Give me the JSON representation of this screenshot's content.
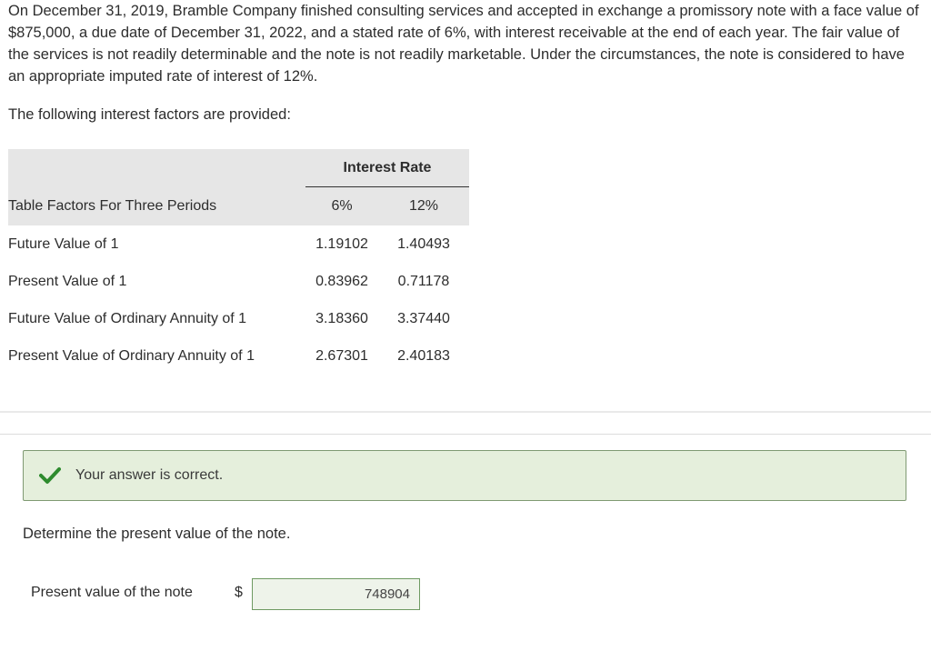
{
  "problem": {
    "text": "On December 31, 2019, Bramble Company finished consulting services and accepted in exchange a promissory note with a face value of $875,000, a due date of December 31, 2022, and a stated rate of 6%, with interest receivable at the end of each year. The fair value of the services is not readily determinable and the note is not readily marketable. Under the circumstances, the note is considered to have an appropriate imputed rate of interest of 12%."
  },
  "intro": "The following interest factors are provided:",
  "table": {
    "group_header": "Interest Rate",
    "row_header": "Table Factors For Three Periods",
    "col_6": "6%",
    "col_12": "12%",
    "rows": [
      {
        "label": "Future Value of 1",
        "v6": "1.19102",
        "v12": "1.40493"
      },
      {
        "label": "Present Value of 1",
        "v6": "0.83962",
        "v12": "0.71178"
      },
      {
        "label": "Future Value of Ordinary Annuity of 1",
        "v6": "3.18360",
        "v12": "3.37440"
      },
      {
        "label": "Present Value of Ordinary Annuity of 1",
        "v6": "2.67301",
        "v12": "2.40183"
      }
    ]
  },
  "feedback": {
    "icon": "checkmark-icon",
    "message": "Your answer is correct.",
    "color": "#2e8b2e"
  },
  "question": "Determine the present value of the note.",
  "answer": {
    "label": "Present value of the note",
    "currency": "$",
    "value": "748904"
  }
}
